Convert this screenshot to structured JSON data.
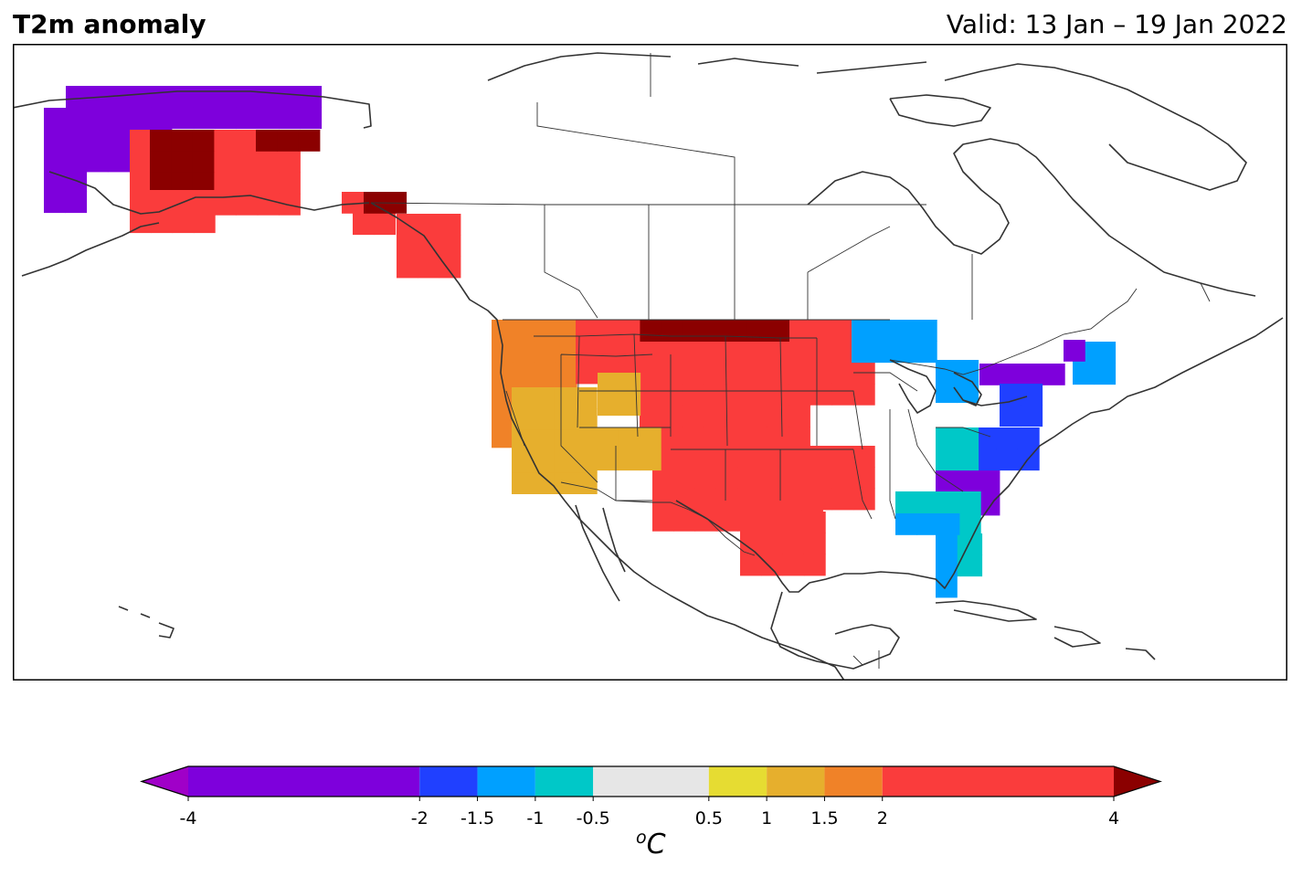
{
  "header": {
    "title": "T2m anomaly",
    "valid": "Valid: 13 Jan – 19 Jan 2022"
  },
  "colorbar": {
    "unit_sup": "o",
    "unit_main": "C",
    "bins": [
      {
        "lo": -4,
        "hi": -2,
        "color": "#7e00dc"
      },
      {
        "lo": -2,
        "hi": -1.5,
        "color": "#2040ff"
      },
      {
        "lo": -1.5,
        "hi": -1,
        "color": "#00a0ff"
      },
      {
        "lo": -1,
        "hi": -0.5,
        "color": "#00c8c8"
      },
      {
        "lo": -0.5,
        "hi": 0.5,
        "color": "#e6e6e6"
      },
      {
        "lo": 0.5,
        "hi": 1,
        "color": "#e6dc32"
      },
      {
        "lo": 1,
        "hi": 1.5,
        "color": "#e6af2d"
      },
      {
        "lo": 1.5,
        "hi": 2,
        "color": "#f08228"
      },
      {
        "lo": 2,
        "hi": 4,
        "color": "#fa3c3c"
      }
    ],
    "under_color": "#a000c8",
    "over_color": "#8b0000",
    "ticks": [
      {
        "value": -4,
        "label": "-4"
      },
      {
        "value": -2,
        "label": "-2"
      },
      {
        "value": -1.5,
        "label": "-1.5"
      },
      {
        "value": -1,
        "label": "-1"
      },
      {
        "value": -0.5,
        "label": "-0.5"
      },
      {
        "value": 0.5,
        "label": "0.5"
      },
      {
        "value": 1,
        "label": "1"
      },
      {
        "value": 1.5,
        "label": "1.5"
      },
      {
        "value": 2,
        "label": "2"
      },
      {
        "value": 4,
        "label": "4"
      }
    ]
  },
  "map": {
    "type": "heatmap",
    "region": "North America",
    "anomaly_regions": [
      {
        "area": "Western Alaska coast",
        "class": -3
      },
      {
        "area": "Interior Alaska",
        "class": 3
      },
      {
        "area": "North-central Alaska",
        "class": 5
      },
      {
        "area": "Alaska panhandle",
        "class": 3
      },
      {
        "area": "US Pacific Northwest",
        "class": 1.75
      },
      {
        "area": "US Northern Plains",
        "class": 5
      },
      {
        "area": "US Central Plains",
        "class": 3
      },
      {
        "area": "US Southern Plains / Texas",
        "class": 3
      },
      {
        "area": "US Southwest",
        "class": 1.25
      },
      {
        "area": "Great Lakes",
        "class": -1.25
      },
      {
        "area": "US Northeast",
        "class": -3
      },
      {
        "area": "US Mid-Atlantic",
        "class": -1.75
      },
      {
        "area": "US Southeast",
        "class": -0.75
      },
      {
        "area": "Florida",
        "class": -1.25
      }
    ]
  }
}
